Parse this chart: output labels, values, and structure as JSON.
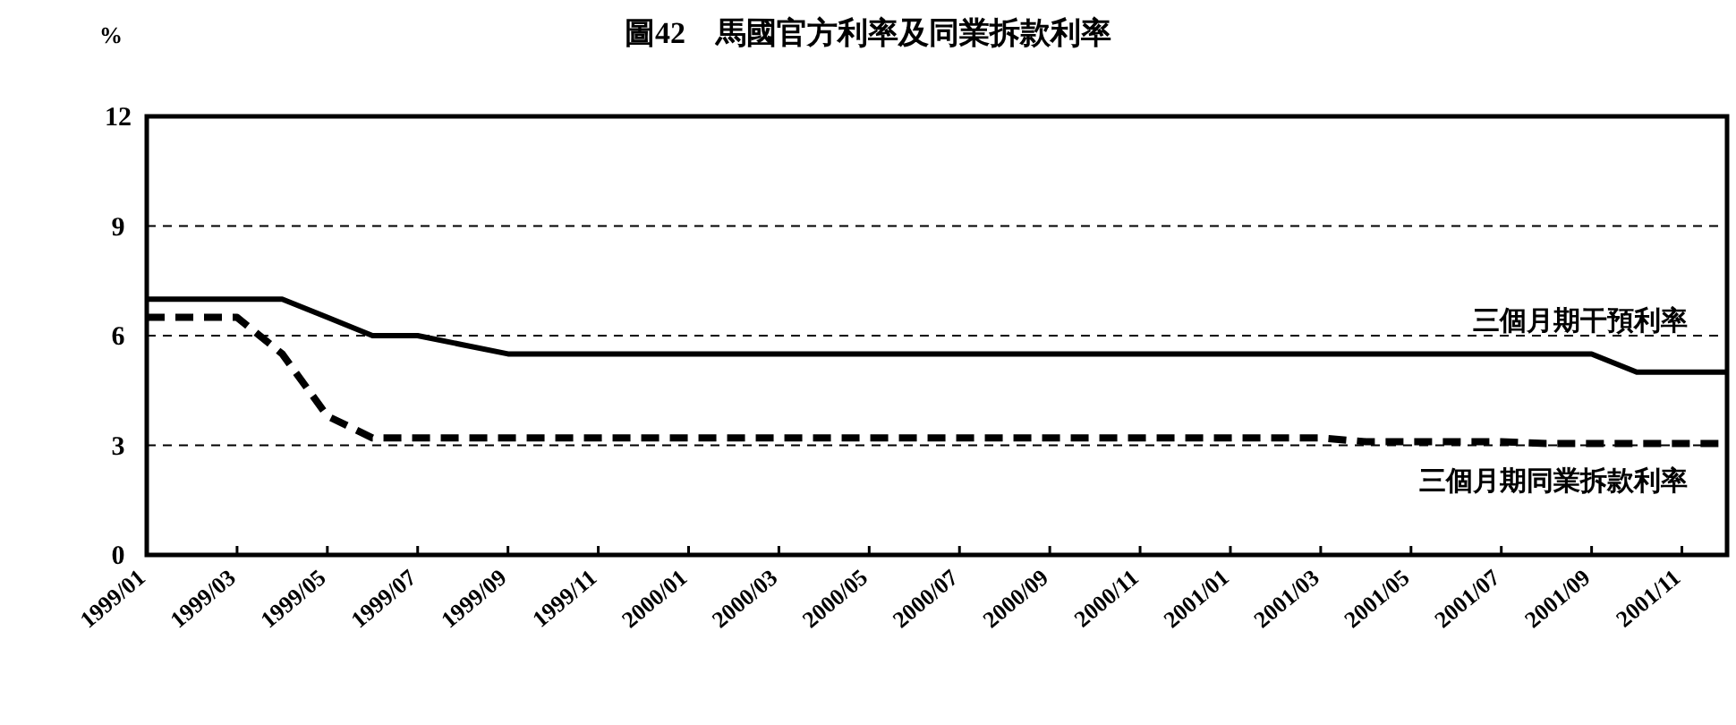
{
  "chart_data": {
    "type": "line",
    "title": "圖42　馬國官方利率及同業拆款利率",
    "ylabel": "%",
    "categories": [
      "1999/01",
      null,
      "1999/03",
      null,
      "1999/05",
      null,
      "1999/07",
      null,
      "1999/09",
      null,
      "1999/11",
      null,
      "2000/01",
      null,
      "2000/03",
      null,
      "2000/05",
      null,
      "2000/07",
      null,
      "2000/09",
      null,
      "2000/11",
      null,
      "2001/01",
      null,
      "2001/03",
      null,
      "2001/05",
      null,
      "2001/07",
      null,
      "2001/09",
      null,
      "2001/11",
      null
    ],
    "series": [
      {
        "name": "三個月期干預利率",
        "color": "#000000",
        "line_style": "solid",
        "values": [
          7,
          7,
          7,
          7,
          6.5,
          6,
          6,
          5.75,
          5.5,
          5.5,
          5.5,
          5.5,
          5.5,
          5.5,
          5.5,
          5.5,
          5.5,
          5.5,
          5.5,
          5.5,
          5.5,
          5.5,
          5.5,
          5.5,
          5.5,
          5.5,
          5.5,
          5.5,
          5.5,
          5.5,
          5.5,
          5.5,
          5.5,
          5,
          5,
          5
        ]
      },
      {
        "name": "三個月期同業拆款利率",
        "color": "#000000",
        "line_style": "dashed",
        "values": [
          6.5,
          6.5,
          6.5,
          5.5,
          3.8,
          3.2,
          3.2,
          3.2,
          3.2,
          3.2,
          3.2,
          3.2,
          3.2,
          3.2,
          3.2,
          3.2,
          3.2,
          3.2,
          3.2,
          3.2,
          3.2,
          3.2,
          3.2,
          3.2,
          3.2,
          3.2,
          3.2,
          3.1,
          3.1,
          3.1,
          3.1,
          3.05,
          3.05,
          3.05,
          3.05,
          3.05
        ]
      }
    ],
    "ylim": [
      0,
      12
    ],
    "yticks": [
      0,
      3,
      6,
      9,
      12
    ],
    "grid": "y",
    "legend": false,
    "marker": "none"
  }
}
